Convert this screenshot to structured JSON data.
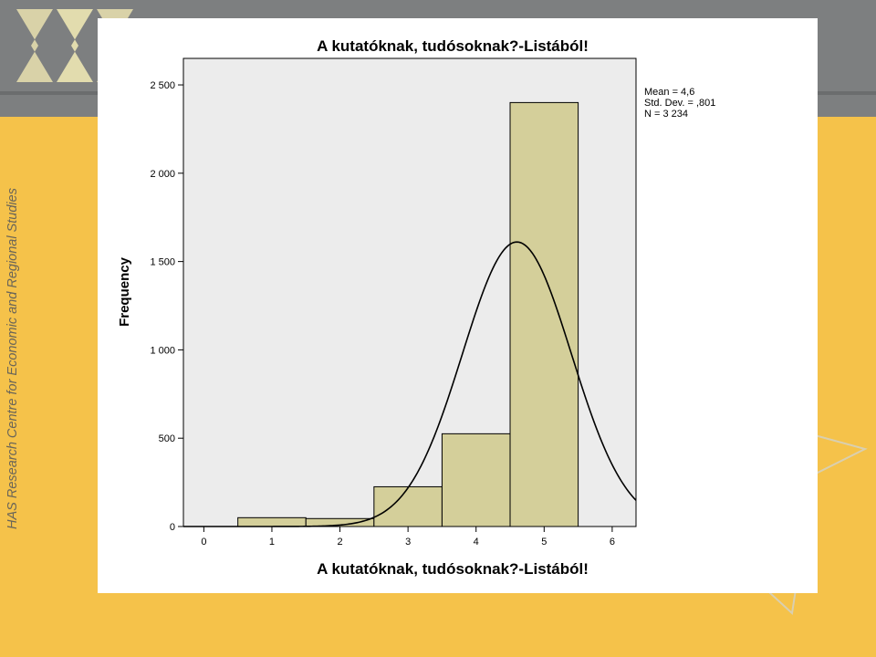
{
  "sidebar": {
    "organization": "HAS Research Centre for Economic and Regional Studies"
  },
  "chart_data": {
    "type": "bar",
    "title": "A kutatóknak, tudósoknak?-Listából!",
    "xlabel": "A kutatóknak, tudósoknak?-Listából!",
    "ylabel": "Frequency",
    "xlim": [
      -0.3,
      6.35
    ],
    "ylim": [
      0,
      2650
    ],
    "x_ticks": [
      0,
      1,
      2,
      3,
      4,
      5,
      6
    ],
    "y_ticks": [
      0,
      500,
      1000,
      1500,
      2000,
      2500
    ],
    "y_tick_labels": [
      "0",
      "500",
      "1 000",
      "1 500",
      "2 000",
      "2 500"
    ],
    "categories": [
      1,
      2,
      3,
      4,
      5
    ],
    "values": [
      50,
      45,
      225,
      525,
      2400
    ],
    "bar_color": "#d4cf9a",
    "plot_background": "#ececec",
    "normal_curve": {
      "mean": 4.6,
      "sd": 0.801,
      "n": 3234,
      "bin_width": 1
    },
    "stats": [
      "Mean = 4,6",
      "Std. Dev. = ,801",
      "N = 3 234"
    ],
    "legend_position": "right",
    "grid": false
  }
}
